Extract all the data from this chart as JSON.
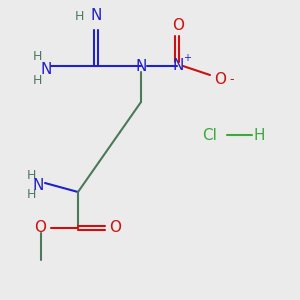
{
  "bg_color": "#ebebeb",
  "bond_color": "#4a7a5a",
  "N_color": "#2020cc",
  "O_color": "#cc1010",
  "H_color": "#4a7a5a",
  "Cl_color": "#3aaa3a",
  "figsize": [
    3.0,
    3.0
  ],
  "dpi": 100,
  "xlim": [
    0,
    10
  ],
  "ylim": [
    0,
    10
  ]
}
